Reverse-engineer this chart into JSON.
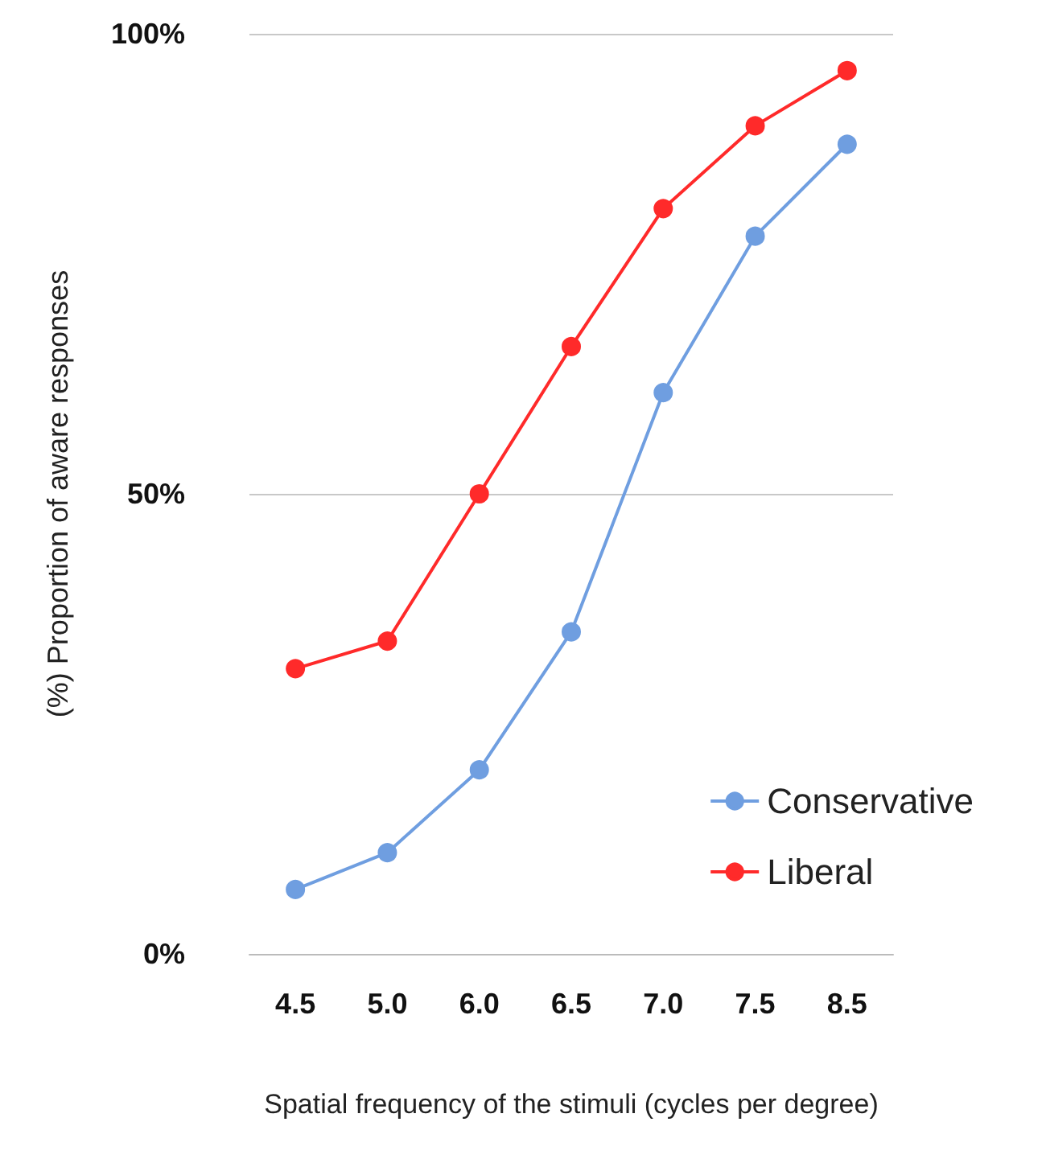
{
  "chart_data": {
    "type": "line",
    "xlabel": "Spatial frequency of the stimuli (cycles per degree)",
    "ylabel": "(%) Proportion of aware responses",
    "categories": [
      "4.5",
      "5.0",
      "6.0",
      "6.5",
      "7.0",
      "7.5",
      "8.5"
    ],
    "series": [
      {
        "name": "Conservative",
        "color": "#6f9ee0",
        "values": [
          7,
          11,
          20,
          35,
          61,
          78,
          88
        ]
      },
      {
        "name": "Liberal",
        "color": "#ff2a2a",
        "values": [
          31,
          34,
          50,
          66,
          81,
          90,
          96
        ]
      }
    ],
    "ylim": [
      0,
      100
    ],
    "yticks": [
      {
        "value": 0,
        "label": "0%"
      },
      {
        "value": 50,
        "label": "50%"
      },
      {
        "value": 100,
        "label": "100%"
      }
    ],
    "grid": "y",
    "legend": "bottom right",
    "marker": "circle",
    "line_style": "solid"
  }
}
